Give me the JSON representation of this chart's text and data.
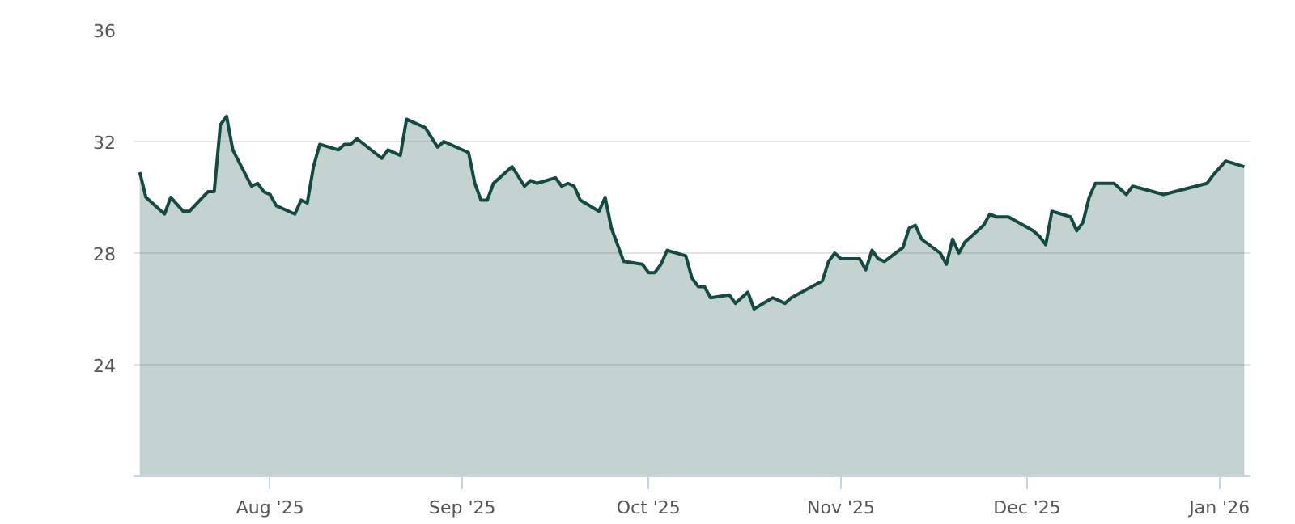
{
  "chart_data": {
    "type": "area",
    "x": [
      "2025-07-11",
      "2025-07-12",
      "2025-07-15",
      "2025-07-16",
      "2025-07-18",
      "2025-07-19",
      "2025-07-22",
      "2025-07-23",
      "2025-07-24",
      "2025-07-25",
      "2025-07-26",
      "2025-07-29",
      "2025-07-30",
      "2025-07-31",
      "2025-08-01",
      "2025-08-02",
      "2025-08-05",
      "2025-08-06",
      "2025-08-07",
      "2025-08-08",
      "2025-08-09",
      "2025-08-12",
      "2025-08-13",
      "2025-08-14",
      "2025-08-15",
      "2025-08-19",
      "2025-08-20",
      "2025-08-22",
      "2025-08-23",
      "2025-08-26",
      "2025-08-28",
      "2025-08-29",
      "2025-09-02",
      "2025-09-03",
      "2025-09-04",
      "2025-09-05",
      "2025-09-06",
      "2025-09-09",
      "2025-09-11",
      "2025-09-12",
      "2025-09-13",
      "2025-09-16",
      "2025-09-17",
      "2025-09-18",
      "2025-09-19",
      "2025-09-20",
      "2025-09-23",
      "2025-09-24",
      "2025-09-25",
      "2025-09-27",
      "2025-09-30",
      "2025-10-01",
      "2025-10-02",
      "2025-10-03",
      "2025-10-04",
      "2025-10-07",
      "2025-10-08",
      "2025-10-09",
      "2025-10-10",
      "2025-10-11",
      "2025-10-14",
      "2025-10-15",
      "2025-10-17",
      "2025-10-18",
      "2025-10-21",
      "2025-10-22",
      "2025-10-23",
      "2025-10-24",
      "2025-10-29",
      "2025-10-30",
      "2025-10-31",
      "2025-11-01",
      "2025-11-04",
      "2025-11-05",
      "2025-11-06",
      "2025-11-07",
      "2025-11-08",
      "2025-11-11",
      "2025-11-12",
      "2025-11-13",
      "2025-11-14",
      "2025-11-17",
      "2025-11-18",
      "2025-11-19",
      "2025-11-20",
      "2025-11-21",
      "2025-11-24",
      "2025-11-25",
      "2025-11-26",
      "2025-11-28",
      "2025-12-02",
      "2025-12-03",
      "2025-12-04",
      "2025-12-05",
      "2025-12-08",
      "2025-12-09",
      "2025-12-10",
      "2025-12-11",
      "2025-12-12",
      "2025-12-15",
      "2025-12-17",
      "2025-12-18",
      "2025-12-23",
      "2025-12-30",
      "2025-12-31",
      "2026-01-02",
      "2026-01-05"
    ],
    "series": [
      {
        "color": "#124a44",
        "values": [
          30.9,
          30.0,
          29.4,
          30.0,
          29.5,
          29.5,
          30.2,
          30.2,
          32.6,
          32.9,
          31.7,
          30.4,
          30.5,
          30.2,
          30.1,
          29.7,
          29.4,
          29.9,
          29.8,
          31.1,
          31.9,
          31.7,
          31.9,
          31.9,
          32.1,
          31.4,
          31.7,
          31.5,
          32.8,
          32.5,
          31.8,
          32.0,
          31.6,
          30.5,
          29.9,
          29.9,
          30.5,
          31.1,
          30.4,
          30.6,
          30.5,
          30.7,
          30.4,
          30.5,
          30.4,
          29.9,
          29.5,
          30.0,
          28.9,
          27.7,
          27.6,
          27.3,
          27.3,
          27.6,
          28.1,
          27.9,
          27.1,
          26.8,
          26.8,
          26.4,
          26.5,
          26.2,
          26.6,
          26.0,
          26.4,
          26.3,
          26.2,
          26.4,
          27.0,
          27.7,
          28.0,
          27.8,
          27.8,
          27.4,
          28.1,
          27.8,
          27.7,
          28.2,
          28.9,
          29.0,
          28.5,
          28.0,
          27.6,
          28.5,
          28.0,
          28.4,
          29.0,
          29.4,
          29.3,
          29.3,
          28.8,
          28.6,
          28.3,
          29.5,
          29.3,
          28.8,
          29.1,
          30.0,
          30.5,
          30.5,
          30.1,
          30.4,
          30.1,
          30.5,
          30.8,
          31.3,
          31.1
        ]
      }
    ],
    "xlim": [
      "2025-07-10",
      "2026-01-06"
    ],
    "xticks": [
      {
        "value": "2025-08-01",
        "label": "Aug '25"
      },
      {
        "value": "2025-09-01",
        "label": "Sep '25"
      },
      {
        "value": "2025-10-01",
        "label": "Oct '25"
      },
      {
        "value": "2025-11-01",
        "label": "Nov '25"
      },
      {
        "value": "2025-12-01",
        "label": "Dec '25"
      },
      {
        "value": "2026-01-01",
        "label": "Jan '26"
      }
    ],
    "ylim": [
      20,
      36
    ],
    "yticks": [
      24,
      28,
      32,
      36
    ],
    "grid": "y",
    "line_style": "solid"
  }
}
